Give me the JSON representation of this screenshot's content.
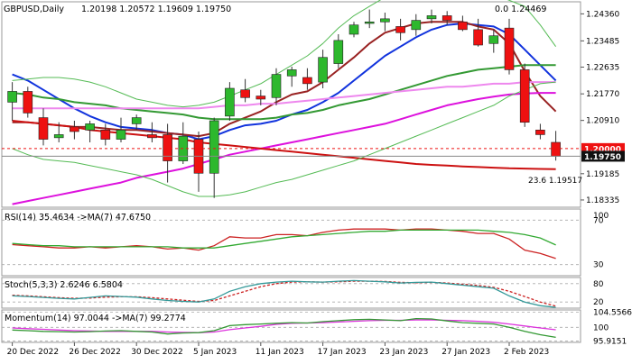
{
  "header": {
    "symbol_label": "GBPUSD,Daily",
    "ohlc_label": "1.20198 1.20572 1.19609 1.19750",
    "fib_top_label": "0.0 1.24469"
  },
  "price_axis": {
    "ticks": [
      "1.24360",
      "1.23485",
      "1.22635",
      "1.21770",
      "1.20910",
      "1.20000",
      "1.19750",
      "1.19185",
      "1.18335"
    ],
    "tick_values": [
      1.2436,
      1.23485,
      1.22635,
      1.2177,
      1.2091,
      1.2,
      1.1975,
      1.19185,
      1.18335
    ],
    "range": [
      1.181,
      1.2475
    ]
  },
  "date_axis": {
    "labels": [
      "20 Dec 2022",
      "26 Dec 2022",
      "30 Dec 2022",
      "5 Jan 2023",
      "11 Jan 2023",
      "17 Jan 2023",
      "23 Jan 2023",
      "27 Jan 2023",
      "2 Feb 2023"
    ],
    "label_bar_index": [
      0,
      4,
      8,
      12,
      16,
      20,
      24,
      28,
      32
    ]
  },
  "annotations": {
    "price_label_red": "1.20000",
    "price_label_black": "1.19750",
    "fib_label": "23.6 1.19517"
  },
  "panels": {
    "rsi": {
      "label": "RSI(14) 35.4634  ->MA(7) 47.6750",
      "ticks": [
        "70",
        "30"
      ],
      "tick_values": [
        70,
        30
      ],
      "extra_tick_label": "100",
      "range": [
        20,
        80
      ]
    },
    "stoch": {
      "label": "Stoch(5,3,3) 2.6246 6.5804",
      "ticks": [
        "80",
        "20"
      ],
      "tick_values": [
        80,
        20
      ],
      "range": [
        0,
        100
      ]
    },
    "momentum": {
      "label": "Momentum(14) 97.0044  ->MA(7) 99.2774",
      "ticks": [
        "104.5566",
        "100",
        "95.9151"
      ],
      "tick_values": [
        104.5566,
        100,
        95.9151
      ],
      "range": [
        95.5,
        105.2
      ]
    }
  },
  "colors": {
    "bull": "#2db82d",
    "bear": "#ee1111",
    "wick": "#333333",
    "ma_blue": "#1133dd",
    "ma_darkred": "#992222",
    "ma_green": "#339933",
    "ma_pink": "#ee88ee",
    "ma_magenta": "#dd11dd",
    "ma_red": "#cc1111",
    "bb": "#55bb55",
    "grid": "#dddddd",
    "hline": "#888888",
    "rsi_line": "#cc2222",
    "rsi_ma": "#33aa33",
    "stoch_main": "#339999",
    "stoch_signal": "#cc2222",
    "mom_line": "#339933",
    "mom_ma": "#dd33dd"
  },
  "chart_data": {
    "type": "candlestick",
    "bars": [
      {
        "o": 1.215,
        "h": 1.2215,
        "l": 1.209,
        "c": 1.2185
      },
      {
        "o": 1.2185,
        "h": 1.22,
        "l": 1.21,
        "c": 1.2115
      },
      {
        "o": 1.21,
        "h": 1.213,
        "l": 1.201,
        "c": 1.203
      },
      {
        "o": 1.2035,
        "h": 1.2085,
        "l": 1.202,
        "c": 1.2045
      },
      {
        "o": 1.207,
        "h": 1.209,
        "l": 1.203,
        "c": 1.2055
      },
      {
        "o": 1.206,
        "h": 1.209,
        "l": 1.202,
        "c": 1.208
      },
      {
        "o": 1.206,
        "h": 1.208,
        "l": 1.201,
        "c": 1.203
      },
      {
        "o": 1.203,
        "h": 1.21,
        "l": 1.202,
        "c": 1.206
      },
      {
        "o": 1.208,
        "h": 1.211,
        "l": 1.206,
        "c": 1.21
      },
      {
        "o": 1.2045,
        "h": 1.2085,
        "l": 1.202,
        "c": 1.2035
      },
      {
        "o": 1.2045,
        "h": 1.208,
        "l": 1.189,
        "c": 1.196
      },
      {
        "o": 1.196,
        "h": 1.2085,
        "l": 1.195,
        "c": 1.204
      },
      {
        "o": 1.203,
        "h": 1.2055,
        "l": 1.186,
        "c": 1.192
      },
      {
        "o": 1.192,
        "h": 1.21,
        "l": 1.184,
        "c": 1.209
      },
      {
        "o": 1.2105,
        "h": 1.2215,
        "l": 1.209,
        "c": 1.2195
      },
      {
        "o": 1.219,
        "h": 1.2225,
        "l": 1.215,
        "c": 1.2165
      },
      {
        "o": 1.217,
        "h": 1.219,
        "l": 1.214,
        "c": 1.216
      },
      {
        "o": 1.2165,
        "h": 1.226,
        "l": 1.214,
        "c": 1.224
      },
      {
        "o": 1.2235,
        "h": 1.2265,
        "l": 1.22,
        "c": 1.2255
      },
      {
        "o": 1.223,
        "h": 1.226,
        "l": 1.219,
        "c": 1.221
      },
      {
        "o": 1.2215,
        "h": 1.232,
        "l": 1.2195,
        "c": 1.2295
      },
      {
        "o": 1.2275,
        "h": 1.237,
        "l": 1.226,
        "c": 1.235
      },
      {
        "o": 1.237,
        "h": 1.241,
        "l": 1.236,
        "c": 1.24
      },
      {
        "o": 1.2405,
        "h": 1.245,
        "l": 1.239,
        "c": 1.241
      },
      {
        "o": 1.241,
        "h": 1.244,
        "l": 1.238,
        "c": 1.242
      },
      {
        "o": 1.2395,
        "h": 1.242,
        "l": 1.235,
        "c": 1.2375
      },
      {
        "o": 1.2385,
        "h": 1.2435,
        "l": 1.2365,
        "c": 1.2415
      },
      {
        "o": 1.242,
        "h": 1.245,
        "l": 1.2405,
        "c": 1.243
      },
      {
        "o": 1.243,
        "h": 1.2445,
        "l": 1.24,
        "c": 1.2415
      },
      {
        "o": 1.241,
        "h": 1.243,
        "l": 1.238,
        "c": 1.2385
      },
      {
        "o": 1.2385,
        "h": 1.242,
        "l": 1.233,
        "c": 1.2335
      },
      {
        "o": 1.234,
        "h": 1.2385,
        "l": 1.231,
        "c": 1.2365
      },
      {
        "o": 1.239,
        "h": 1.242,
        "l": 1.224,
        "c": 1.2255
      },
      {
        "o": 1.2255,
        "h": 1.2275,
        "l": 1.207,
        "c": 1.2085
      },
      {
        "o": 1.206,
        "h": 1.208,
        "l": 1.203,
        "c": 1.2045
      },
      {
        "o": 1.202,
        "h": 1.2057,
        "l": 1.1961,
        "c": 1.1975
      }
    ],
    "overlays": [
      {
        "name": "ma_blue",
        "color_key": "ma_blue",
        "values": [
          1.224,
          1.222,
          1.219,
          1.216,
          1.213,
          1.2105,
          1.2085,
          1.207,
          1.2065,
          1.206,
          1.205,
          1.2045,
          1.203,
          1.204,
          1.206,
          1.2075,
          1.208,
          1.209,
          1.211,
          1.2125,
          1.215,
          1.218,
          1.222,
          1.226,
          1.23,
          1.233,
          1.236,
          1.2385,
          1.24,
          1.2405,
          1.24,
          1.2395,
          1.237,
          1.232,
          1.227,
          1.222
        ]
      },
      {
        "name": "ma_darkred",
        "color_key": "ma_darkred",
        "values": [
          1.2085,
          1.2085,
          1.208,
          1.2075,
          1.207,
          1.207,
          1.2065,
          1.206,
          1.206,
          1.2055,
          1.205,
          1.2045,
          1.204,
          1.205,
          1.208,
          1.21,
          1.212,
          1.215,
          1.2175,
          1.2185,
          1.2215,
          1.2255,
          1.2295,
          1.234,
          1.2375,
          1.239,
          1.2405,
          1.241,
          1.241,
          1.241,
          1.2395,
          1.2385,
          1.234,
          1.225,
          1.217,
          1.212
        ]
      },
      {
        "name": "ma_green",
        "color_key": "ma_green",
        "values": [
          1.218,
          1.2175,
          1.2165,
          1.216,
          1.215,
          1.2145,
          1.214,
          1.213,
          1.2125,
          1.212,
          1.2115,
          1.211,
          1.21,
          1.2095,
          1.2095,
          1.2095,
          1.2095,
          1.21,
          1.211,
          1.2115,
          1.2125,
          1.214,
          1.215,
          1.216,
          1.2175,
          1.219,
          1.2205,
          1.222,
          1.2235,
          1.2245,
          1.2255,
          1.226,
          1.2265,
          1.227,
          1.227,
          1.227
        ]
      },
      {
        "name": "ma_pink",
        "color_key": "ma_pink",
        "values": [
          1.213,
          1.213,
          1.213,
          1.213,
          1.213,
          1.213,
          1.213,
          1.213,
          1.213,
          1.213,
          1.213,
          1.213,
          1.213,
          1.2135,
          1.214,
          1.214,
          1.2145,
          1.2145,
          1.215,
          1.2155,
          1.216,
          1.2165,
          1.217,
          1.2175,
          1.218,
          1.2185,
          1.219,
          1.2195,
          1.22,
          1.22,
          1.2205,
          1.221,
          1.221,
          1.2215,
          1.2215,
          1.2215
        ]
      },
      {
        "name": "ma_magenta",
        "color_key": "ma_magenta",
        "values": [
          1.182,
          1.183,
          1.184,
          1.185,
          1.186,
          1.187,
          1.188,
          1.189,
          1.1905,
          1.1915,
          1.1925,
          1.1935,
          1.195,
          1.1965,
          1.198,
          1.199,
          1.2,
          1.201,
          1.202,
          1.203,
          1.204,
          1.205,
          1.206,
          1.207,
          1.208,
          1.2095,
          1.211,
          1.2125,
          1.214,
          1.215,
          1.216,
          1.2168,
          1.2175,
          1.2178,
          1.218,
          1.218
        ]
      },
      {
        "name": "ma_red",
        "color_key": "ma_red",
        "values": [
          1.209,
          1.2085,
          1.208,
          1.2075,
          1.207,
          1.206,
          1.2055,
          1.205,
          1.2045,
          1.204,
          1.2035,
          1.203,
          1.202,
          1.2015,
          1.201,
          1.2005,
          1.2,
          1.1995,
          1.199,
          1.1985,
          1.198,
          1.1975,
          1.197,
          1.1965,
          1.196,
          1.1955,
          1.195,
          1.1947,
          1.1945,
          1.1942,
          1.194,
          1.1938,
          1.1936,
          1.1935,
          1.1934,
          1.1933
        ]
      },
      {
        "name": "bb_upper",
        "color_key": "bb",
        "values": [
          1.222,
          1.2225,
          1.223,
          1.223,
          1.2225,
          1.2215,
          1.22,
          1.218,
          1.216,
          1.215,
          1.214,
          1.2135,
          1.214,
          1.215,
          1.217,
          1.219,
          1.221,
          1.224,
          1.227,
          1.23,
          1.234,
          1.239,
          1.243,
          1.246,
          1.249,
          1.251,
          1.252,
          1.253,
          1.253,
          1.2525,
          1.2515,
          1.25,
          1.248,
          1.246,
          1.24,
          1.233
        ]
      },
      {
        "name": "bb_lower",
        "color_key": "bb",
        "values": [
          1.2,
          1.198,
          1.1965,
          1.196,
          1.1955,
          1.1945,
          1.1935,
          1.1925,
          1.1915,
          1.19,
          1.188,
          1.186,
          1.1845,
          1.1845,
          1.185,
          1.186,
          1.1875,
          1.189,
          1.19,
          1.1915,
          1.193,
          1.1945,
          1.196,
          1.198,
          1.2,
          1.202,
          1.204,
          1.206,
          1.208,
          1.21,
          1.212,
          1.214,
          1.217,
          1.219,
          1.221,
          1.2215
        ]
      }
    ],
    "horizontal_lines": [
      {
        "value": 1.2,
        "style": "dashed",
        "color_key": "bear"
      },
      {
        "value": 1.1975,
        "style": "solid",
        "color_key": "hline"
      }
    ],
    "rsi": {
      "rsi": [
        48,
        47,
        46,
        45,
        45,
        46,
        45,
        46,
        47,
        46,
        44,
        45,
        43,
        47,
        55,
        54,
        54,
        57,
        57,
        56,
        59,
        61,
        62,
        62,
        62,
        61,
        62,
        62,
        61,
        60,
        58,
        58,
        53,
        43,
        40,
        35.4634
      ],
      "ma": [
        49,
        48,
        47,
        47,
        46,
        46,
        46,
        46,
        46,
        46,
        46,
        45,
        45,
        45,
        47,
        49,
        51,
        53,
        55,
        56,
        57,
        58,
        59,
        60,
        60,
        61,
        61,
        61,
        61,
        61,
        61,
        60,
        59,
        57,
        54,
        47.675
      ]
    },
    "stoch": {
      "main": [
        40,
        38,
        35,
        32,
        30,
        35,
        40,
        38,
        36,
        30,
        25,
        22,
        20,
        30,
        55,
        70,
        80,
        85,
        88,
        86,
        85,
        88,
        90,
        88,
        86,
        82,
        84,
        85,
        80,
        75,
        70,
        65,
        40,
        20,
        8,
        2.6246
      ],
      "signal": [
        42,
        40,
        37,
        34,
        32,
        33,
        36,
        37,
        37,
        34,
        30,
        26,
        22,
        25,
        40,
        55,
        70,
        80,
        85,
        86,
        85,
        86,
        88,
        88,
        87,
        84,
        83,
        84,
        82,
        78,
        74,
        68,
        55,
        38,
        20,
        6.5804
      ]
    },
    "momentum": {
      "mom": [
        99.2,
        99.0,
        98.8,
        98.7,
        98.6,
        98.7,
        98.9,
        99.0,
        98.8,
        98.6,
        98.0,
        98.3,
        98.4,
        99.0,
        100.5,
        100.8,
        101.0,
        101.2,
        101.4,
        101.3,
        101.7,
        102.0,
        102.3,
        102.4,
        102.2,
        102.0,
        102.6,
        102.5,
        101.9,
        101.4,
        101.2,
        101.0,
        100.0,
        98.8,
        97.8,
        97.0044
      ],
      "ma": [
        99.8,
        99.6,
        99.4,
        99.2,
        99.0,
        98.9,
        98.8,
        98.8,
        98.8,
        98.8,
        98.6,
        98.5,
        98.4,
        98.6,
        99.3,
        99.8,
        100.3,
        100.9,
        101.2,
        101.3,
        101.4,
        101.6,
        101.8,
        102.0,
        102.1,
        102.1,
        102.2,
        102.2,
        102.1,
        102.0,
        101.8,
        101.5,
        101.0,
        100.4,
        99.8,
        99.2774
      ]
    }
  }
}
